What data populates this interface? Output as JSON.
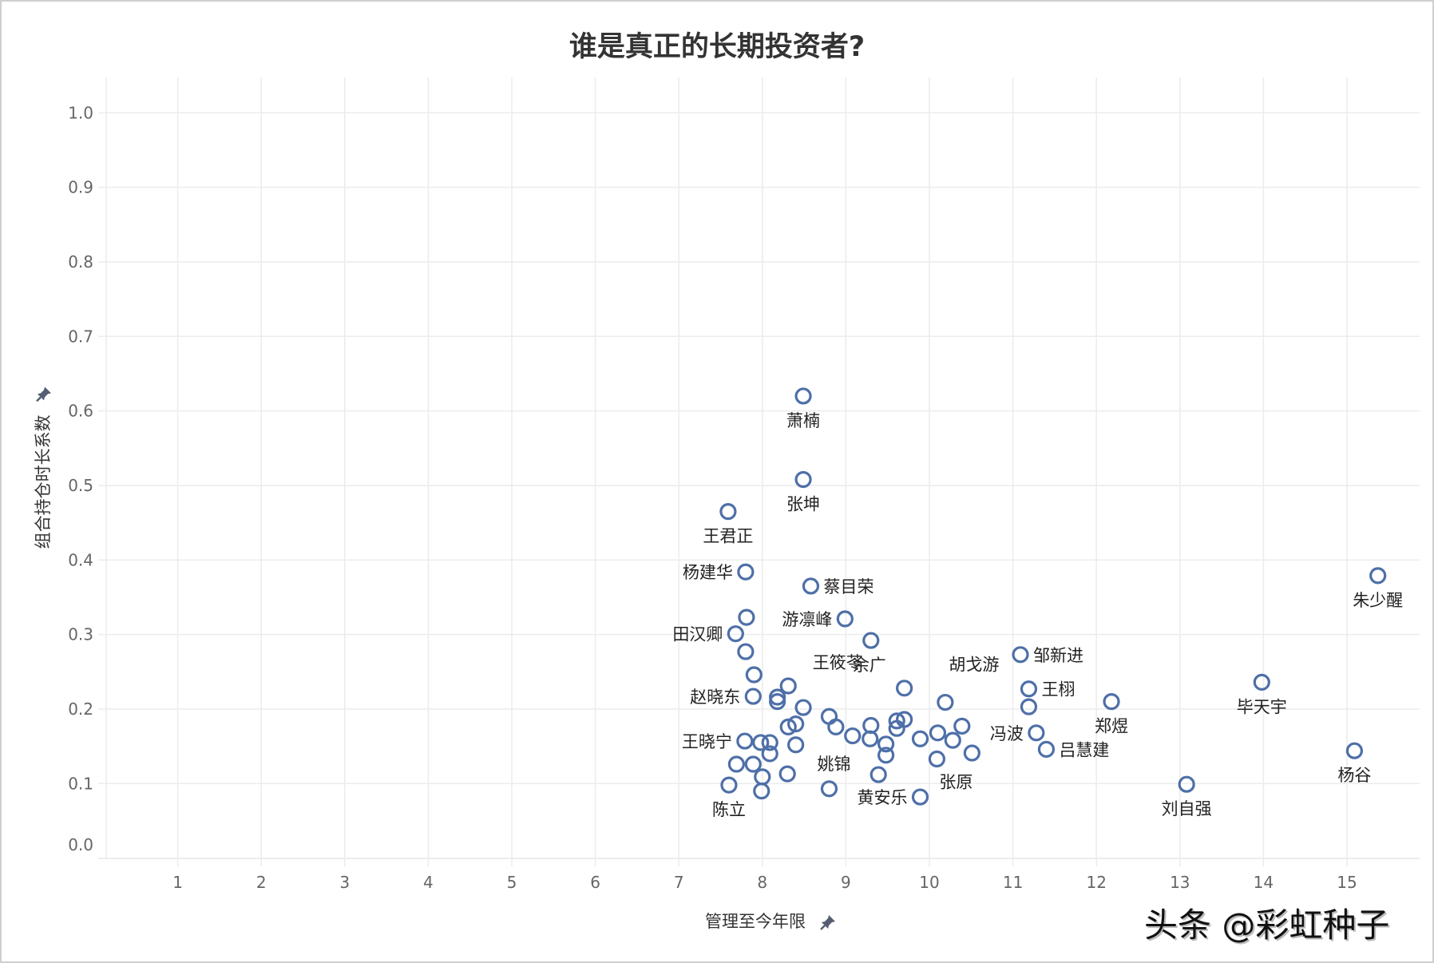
{
  "title": "谁是真正的长期投资者?",
  "watermark": "头条 @彩虹种子",
  "colors": {
    "marker": "#4e6fa8",
    "grid": "#ececec",
    "title": "#333333",
    "tick_text": "#666666",
    "pin_icon": "#555e72"
  },
  "axes": {
    "x_title": "管理至今年限",
    "y_title": "组合持仓时长系数",
    "x_ticks": [
      "1",
      "2",
      "3",
      "4",
      "5",
      "6",
      "7",
      "8",
      "9",
      "10",
      "11",
      "12",
      "13",
      "14",
      "15"
    ],
    "y_ticks": [
      "0.0",
      "0.1",
      "0.2",
      "0.3",
      "0.4",
      "0.5",
      "0.6",
      "0.7",
      "0.8",
      "0.9",
      "1.0"
    ]
  },
  "chart_data": {
    "type": "scatter",
    "title": "谁是真正的长期投资者?",
    "xlabel": "管理至今年限",
    "ylabel": "组合持仓时长系数",
    "xlim": [
      0.15,
      15.7
    ],
    "ylim": [
      0.0,
      1.04
    ],
    "grid": true,
    "legend": null,
    "marker": "hollow-circle",
    "points": [
      {
        "x": 8.49,
        "y": 0.62,
        "label": "萧楠",
        "pos": "below"
      },
      {
        "x": 8.49,
        "y": 0.508,
        "label": "张坤",
        "pos": "below"
      },
      {
        "x": 7.59,
        "y": 0.465,
        "label": "王君正",
        "pos": "below"
      },
      {
        "x": 7.8,
        "y": 0.384,
        "label": "杨建华",
        "pos": "left"
      },
      {
        "x": 8.58,
        "y": 0.365,
        "label": "蔡目荣",
        "pos": "right"
      },
      {
        "x": 7.81,
        "y": 0.323,
        "label": ""
      },
      {
        "x": 8.99,
        "y": 0.321,
        "label": "游凛峰",
        "pos": "left"
      },
      {
        "x": 7.68,
        "y": 0.301,
        "label": "田汉卿",
        "pos": "left"
      },
      {
        "x": 9.3,
        "y": 0.292,
        "label": "余广",
        "pos": "below"
      },
      {
        "x": 7.8,
        "y": 0.277,
        "label": ""
      },
      {
        "x": 7.9,
        "y": 0.246,
        "label": ""
      },
      {
        "x": 8.31,
        "y": 0.231,
        "label": "王筱苓",
        "pos": "above-left"
      },
      {
        "x": 7.89,
        "y": 0.217,
        "label": "赵晓东",
        "pos": "left"
      },
      {
        "x": 8.18,
        "y": 0.216,
        "label": ""
      },
      {
        "x": 8.18,
        "y": 0.21,
        "label": ""
      },
      {
        "x": 8.49,
        "y": 0.202,
        "label": ""
      },
      {
        "x": 8.8,
        "y": 0.19,
        "label": ""
      },
      {
        "x": 8.4,
        "y": 0.18,
        "label": ""
      },
      {
        "x": 8.31,
        "y": 0.176,
        "label": ""
      },
      {
        "x": 8.88,
        "y": 0.176,
        "label": ""
      },
      {
        "x": 9.08,
        "y": 0.164,
        "label": ""
      },
      {
        "x": 7.79,
        "y": 0.157,
        "label": "王晓宁",
        "pos": "left"
      },
      {
        "x": 7.98,
        "y": 0.155,
        "label": ""
      },
      {
        "x": 8.09,
        "y": 0.155,
        "label": ""
      },
      {
        "x": 8.4,
        "y": 0.152,
        "label": ""
      },
      {
        "x": 8.09,
        "y": 0.14,
        "label": ""
      },
      {
        "x": 7.69,
        "y": 0.126,
        "label": ""
      },
      {
        "x": 7.89,
        "y": 0.126,
        "label": ""
      },
      {
        "x": 8.0,
        "y": 0.109,
        "label": ""
      },
      {
        "x": 8.3,
        "y": 0.113,
        "label": ""
      },
      {
        "x": 7.6,
        "y": 0.098,
        "label": "陈立",
        "pos": "below"
      },
      {
        "x": 7.99,
        "y": 0.09,
        "label": ""
      },
      {
        "x": 8.8,
        "y": 0.093,
        "label": "姚锦",
        "pos": "above"
      },
      {
        "x": 9.3,
        "y": 0.178,
        "label": ""
      },
      {
        "x": 9.29,
        "y": 0.16,
        "label": ""
      },
      {
        "x": 9.48,
        "y": 0.153,
        "label": ""
      },
      {
        "x": 9.48,
        "y": 0.138,
        "label": ""
      },
      {
        "x": 9.61,
        "y": 0.184,
        "label": ""
      },
      {
        "x": 9.7,
        "y": 0.186,
        "label": ""
      },
      {
        "x": 9.61,
        "y": 0.174,
        "label": ""
      },
      {
        "x": 9.7,
        "y": 0.228,
        "label": ""
      },
      {
        "x": 9.39,
        "y": 0.112,
        "label": ""
      },
      {
        "x": 9.89,
        "y": 0.082,
        "label": "黄安乐",
        "pos": "left"
      },
      {
        "x": 9.89,
        "y": 0.16,
        "label": ""
      },
      {
        "x": 10.1,
        "y": 0.168,
        "label": ""
      },
      {
        "x": 10.28,
        "y": 0.158,
        "label": ""
      },
      {
        "x": 10.39,
        "y": 0.177,
        "label": ""
      },
      {
        "x": 10.51,
        "y": 0.141,
        "label": ""
      },
      {
        "x": 10.09,
        "y": 0.133,
        "label": "张原",
        "pos": "below"
      },
      {
        "x": 10.19,
        "y": 0.209,
        "label": "胡戈游",
        "pos": "above"
      },
      {
        "x": 11.09,
        "y": 0.273,
        "label": "邹新进",
        "pos": "right"
      },
      {
        "x": 11.19,
        "y": 0.227,
        "label": "王栩",
        "pos": "right"
      },
      {
        "x": 11.19,
        "y": 0.203,
        "label": ""
      },
      {
        "x": 11.28,
        "y": 0.168,
        "label": "冯波",
        "pos": "left"
      },
      {
        "x": 11.4,
        "y": 0.146,
        "label": "吕慧建",
        "pos": "right"
      },
      {
        "x": 12.18,
        "y": 0.21,
        "label": "郑煜",
        "pos": "below"
      },
      {
        "x": 13.08,
        "y": 0.099,
        "label": "刘自强",
        "pos": "below"
      },
      {
        "x": 13.98,
        "y": 0.236,
        "label": "毕天宇",
        "pos": "below"
      },
      {
        "x": 15.09,
        "y": 0.144,
        "label": "杨谷",
        "pos": "below"
      },
      {
        "x": 15.37,
        "y": 0.379,
        "label": "朱少醒",
        "pos": "below"
      }
    ]
  }
}
